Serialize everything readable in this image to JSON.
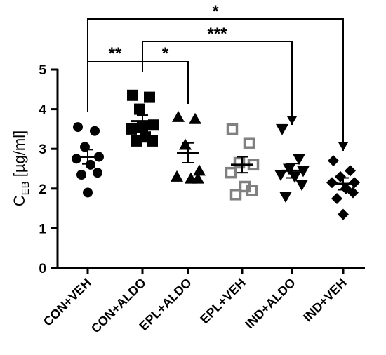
{
  "chart_data": {
    "type": "scatter",
    "ylabel_main": "C",
    "ylabel_sub": "EB",
    "ylabel_unit": " [µg/ml]",
    "ylim": [
      0,
      5
    ],
    "yticks": [
      "0",
      "1",
      "2",
      "3",
      "4",
      "5"
    ],
    "grid": false,
    "groups": [
      {
        "name": "CON+VEH",
        "marker": "circle",
        "fill": "#000000",
        "mean": 2.8,
        "sem": 0.18,
        "values": [
          3.55,
          3.45,
          3.05,
          2.8,
          2.75,
          2.6,
          2.4,
          2.35,
          1.9
        ]
      },
      {
        "name": "CON+ALDO",
        "marker": "square",
        "fill": "#000000",
        "mean": 3.7,
        "sem": 0.15,
        "values": [
          4.35,
          4.3,
          4.0,
          3.6,
          3.5,
          3.3,
          3.2,
          3.2,
          3.55
        ]
      },
      {
        "name": "EPL+ALDO",
        "marker": "triangle-up",
        "fill": "#000000",
        "mean": 2.9,
        "sem": 0.25,
        "values": [
          3.8,
          3.75,
          3.1,
          2.45,
          2.3,
          2.25,
          2.25
        ]
      },
      {
        "name": "EPL+VEH",
        "marker": "square-open",
        "fill": "#808080",
        "mean": 2.6,
        "sem": 0.2,
        "values": [
          3.5,
          3.15,
          2.65,
          2.6,
          2.4,
          2.05,
          1.95,
          1.85
        ]
      },
      {
        "name": "IND+ALDO",
        "marker": "triangle-down",
        "fill": "#000000",
        "mean": 2.45,
        "sem": 0.18,
        "values": [
          3.5,
          2.75,
          2.5,
          2.45,
          2.35,
          2.3,
          2.1,
          1.8
        ]
      },
      {
        "name": "IND+VEH",
        "marker": "diamond",
        "fill": "#000000",
        "mean": 2.12,
        "sem": 0.15,
        "values": [
          2.7,
          2.45,
          2.3,
          2.15,
          2.15,
          2.0,
          1.9,
          1.75,
          1.35
        ]
      }
    ],
    "significance": [
      {
        "from": "CON+VEH",
        "to": "CON+ALDO",
        "label": "**"
      },
      {
        "from": "CON+ALDO",
        "to": "EPL+ALDO",
        "label": "*"
      },
      {
        "from": "CON+ALDO",
        "to": "IND+ALDO",
        "label": "***"
      },
      {
        "from": "CON+VEH",
        "to": "IND+VEH",
        "label": "*"
      }
    ]
  }
}
